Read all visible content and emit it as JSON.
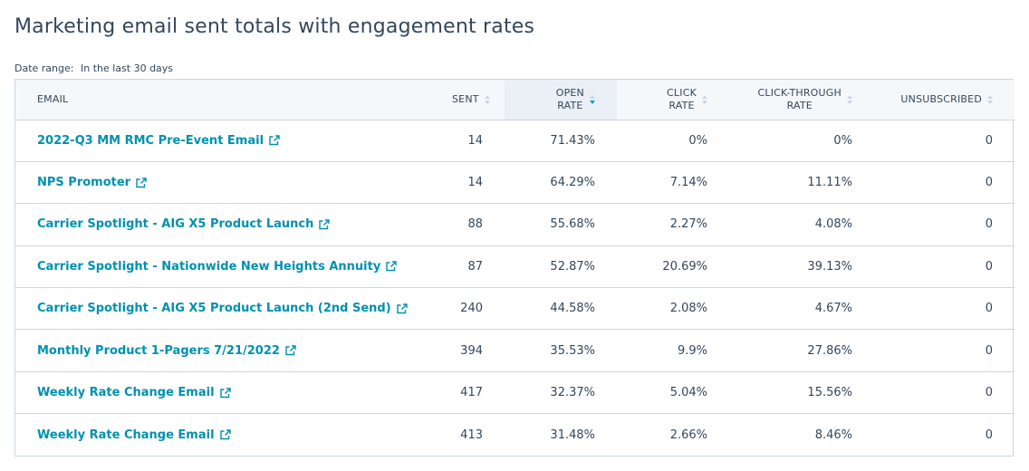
{
  "report": {
    "title": "Marketing email sent totals with engagement rates",
    "date_range_label": "Date range:",
    "date_range_value": "In the last 30 days"
  },
  "columns": {
    "email": "EMAIL",
    "sent": "SENT",
    "open_rate_1": "OPEN",
    "open_rate_2": "RATE",
    "click_rate_1": "CLICK",
    "click_rate_2": "RATE",
    "ctr_1": "CLICK-THROUGH",
    "ctr_2": "RATE",
    "unsubscribed": "UNSUBSCRIBED"
  },
  "sort": {
    "column": "open_rate",
    "direction": "descending"
  },
  "colors": {
    "link": "#0091ae",
    "text": "#33475b",
    "border": "#cbd6e2",
    "header_bg": "#f5f8fa",
    "sorted_bg": "#eaf0f6",
    "sort_active": "#00a4bd"
  },
  "rows": [
    {
      "email": "2022-Q3 MM RMC Pre-Event Email",
      "sent": "14",
      "open_rate": "71.43%",
      "click_rate": "0%",
      "ctr": "0%",
      "unsubscribed": "0"
    },
    {
      "email": "NPS Promoter",
      "sent": "14",
      "open_rate": "64.29%",
      "click_rate": "7.14%",
      "ctr": "11.11%",
      "unsubscribed": "0"
    },
    {
      "email": "Carrier Spotlight - AIG X5 Product Launch",
      "sent": "88",
      "open_rate": "55.68%",
      "click_rate": "2.27%",
      "ctr": "4.08%",
      "unsubscribed": "0"
    },
    {
      "email": "Carrier Spotlight - Nationwide New Heights Annuity",
      "sent": "87",
      "open_rate": "52.87%",
      "click_rate": "20.69%",
      "ctr": "39.13%",
      "unsubscribed": "0"
    },
    {
      "email": "Carrier Spotlight - AIG X5 Product Launch (2nd Send)",
      "sent": "240",
      "open_rate": "44.58%",
      "click_rate": "2.08%",
      "ctr": "4.67%",
      "unsubscribed": "0"
    },
    {
      "email": "Monthly Product 1-Pagers 7/21/2022",
      "sent": "394",
      "open_rate": "35.53%",
      "click_rate": "9.9%",
      "ctr": "27.86%",
      "unsubscribed": "0"
    },
    {
      "email": "Weekly Rate Change Email",
      "sent": "417",
      "open_rate": "32.37%",
      "click_rate": "5.04%",
      "ctr": "15.56%",
      "unsubscribed": "0"
    },
    {
      "email": "Weekly Rate Change Email",
      "sent": "413",
      "open_rate": "31.48%",
      "click_rate": "2.66%",
      "ctr": "8.46%",
      "unsubscribed": "0"
    }
  ],
  "icons": {
    "external_link": "external-link-icon",
    "sort": "sort-icon"
  }
}
